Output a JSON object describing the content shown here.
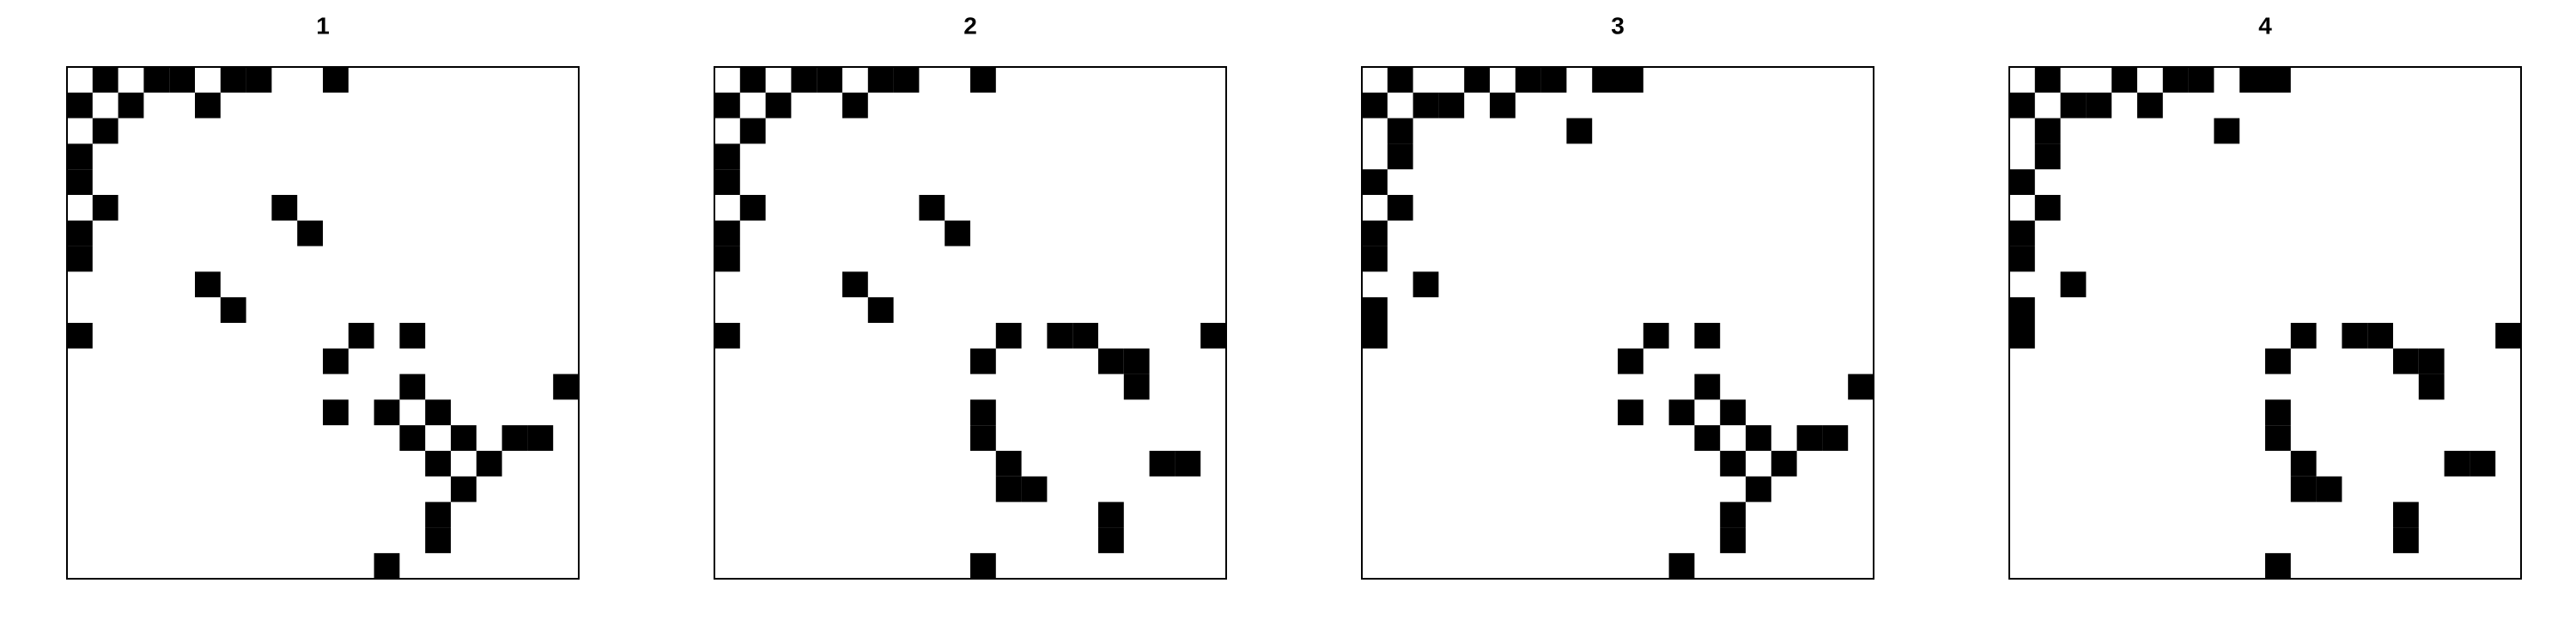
{
  "chart_data": [
    {
      "type": "heatmap",
      "title": "1",
      "grid_size": 20,
      "cell_value": 1,
      "filled_cells": [
        [
          0,
          1
        ],
        [
          0,
          3
        ],
        [
          0,
          4
        ],
        [
          0,
          6
        ],
        [
          0,
          7
        ],
        [
          0,
          10
        ],
        [
          1,
          0
        ],
        [
          1,
          2
        ],
        [
          1,
          5
        ],
        [
          2,
          1
        ],
        [
          3,
          0
        ],
        [
          4,
          0
        ],
        [
          5,
          1
        ],
        [
          5,
          8
        ],
        [
          6,
          0
        ],
        [
          6,
          9
        ],
        [
          7,
          0
        ],
        [
          8,
          5
        ],
        [
          9,
          6
        ],
        [
          10,
          0
        ],
        [
          10,
          11
        ],
        [
          10,
          13
        ],
        [
          11,
          10
        ],
        [
          12,
          13
        ],
        [
          12,
          19
        ],
        [
          13,
          10
        ],
        [
          13,
          12
        ],
        [
          13,
          14
        ],
        [
          14,
          13
        ],
        [
          14,
          15
        ],
        [
          14,
          17
        ],
        [
          14,
          18
        ],
        [
          15,
          14
        ],
        [
          15,
          16
        ],
        [
          16,
          15
        ],
        [
          17,
          14
        ],
        [
          18,
          14
        ],
        [
          19,
          12
        ]
      ]
    },
    {
      "type": "heatmap",
      "title": "2",
      "grid_size": 20,
      "cell_value": 1,
      "filled_cells": [
        [
          0,
          1
        ],
        [
          0,
          3
        ],
        [
          0,
          4
        ],
        [
          0,
          6
        ],
        [
          0,
          7
        ],
        [
          0,
          10
        ],
        [
          1,
          0
        ],
        [
          1,
          2
        ],
        [
          1,
          5
        ],
        [
          2,
          1
        ],
        [
          3,
          0
        ],
        [
          4,
          0
        ],
        [
          5,
          1
        ],
        [
          5,
          8
        ],
        [
          6,
          0
        ],
        [
          6,
          9
        ],
        [
          7,
          0
        ],
        [
          8,
          5
        ],
        [
          9,
          6
        ],
        [
          10,
          0
        ],
        [
          10,
          11
        ],
        [
          10,
          13
        ],
        [
          10,
          14
        ],
        [
          10,
          19
        ],
        [
          11,
          10
        ],
        [
          11,
          15
        ],
        [
          11,
          16
        ],
        [
          12,
          16
        ],
        [
          13,
          10
        ],
        [
          14,
          10
        ],
        [
          15,
          11
        ],
        [
          15,
          17
        ],
        [
          15,
          18
        ],
        [
          16,
          11
        ],
        [
          16,
          12
        ],
        [
          17,
          15
        ],
        [
          18,
          15
        ],
        [
          19,
          10
        ]
      ]
    },
    {
      "type": "heatmap",
      "title": "3",
      "grid_size": 20,
      "cell_value": 1,
      "filled_cells": [
        [
          0,
          1
        ],
        [
          0,
          4
        ],
        [
          0,
          6
        ],
        [
          0,
          7
        ],
        [
          0,
          9
        ],
        [
          0,
          10
        ],
        [
          1,
          0
        ],
        [
          1,
          2
        ],
        [
          1,
          3
        ],
        [
          1,
          5
        ],
        [
          2,
          1
        ],
        [
          2,
          8
        ],
        [
          3,
          1
        ],
        [
          4,
          0
        ],
        [
          5,
          1
        ],
        [
          6,
          0
        ],
        [
          7,
          0
        ],
        [
          8,
          2
        ],
        [
          9,
          0
        ],
        [
          10,
          0
        ],
        [
          10,
          11
        ],
        [
          10,
          13
        ],
        [
          11,
          10
        ],
        [
          12,
          13
        ],
        [
          12,
          19
        ],
        [
          13,
          10
        ],
        [
          13,
          12
        ],
        [
          13,
          14
        ],
        [
          14,
          13
        ],
        [
          14,
          15
        ],
        [
          14,
          17
        ],
        [
          14,
          18
        ],
        [
          15,
          14
        ],
        [
          15,
          16
        ],
        [
          16,
          15
        ],
        [
          17,
          14
        ],
        [
          18,
          14
        ],
        [
          19,
          12
        ]
      ]
    },
    {
      "type": "heatmap",
      "title": "4",
      "grid_size": 20,
      "cell_value": 1,
      "filled_cells": [
        [
          0,
          1
        ],
        [
          0,
          4
        ],
        [
          0,
          6
        ],
        [
          0,
          7
        ],
        [
          0,
          9
        ],
        [
          0,
          10
        ],
        [
          1,
          0
        ],
        [
          1,
          2
        ],
        [
          1,
          3
        ],
        [
          1,
          5
        ],
        [
          2,
          1
        ],
        [
          2,
          8
        ],
        [
          3,
          1
        ],
        [
          4,
          0
        ],
        [
          5,
          1
        ],
        [
          6,
          0
        ],
        [
          7,
          0
        ],
        [
          8,
          2
        ],
        [
          9,
          0
        ],
        [
          10,
          0
        ],
        [
          10,
          11
        ],
        [
          10,
          13
        ],
        [
          10,
          14
        ],
        [
          10,
          19
        ],
        [
          11,
          10
        ],
        [
          11,
          15
        ],
        [
          11,
          16
        ],
        [
          12,
          16
        ],
        [
          13,
          10
        ],
        [
          14,
          10
        ],
        [
          15,
          11
        ],
        [
          15,
          17
        ],
        [
          15,
          18
        ],
        [
          16,
          11
        ],
        [
          16,
          12
        ],
        [
          17,
          15
        ],
        [
          18,
          15
        ],
        [
          19,
          10
        ]
      ]
    }
  ],
  "colors": {
    "filled": "#000000",
    "background": "#ffffff",
    "frame": "#000000"
  }
}
